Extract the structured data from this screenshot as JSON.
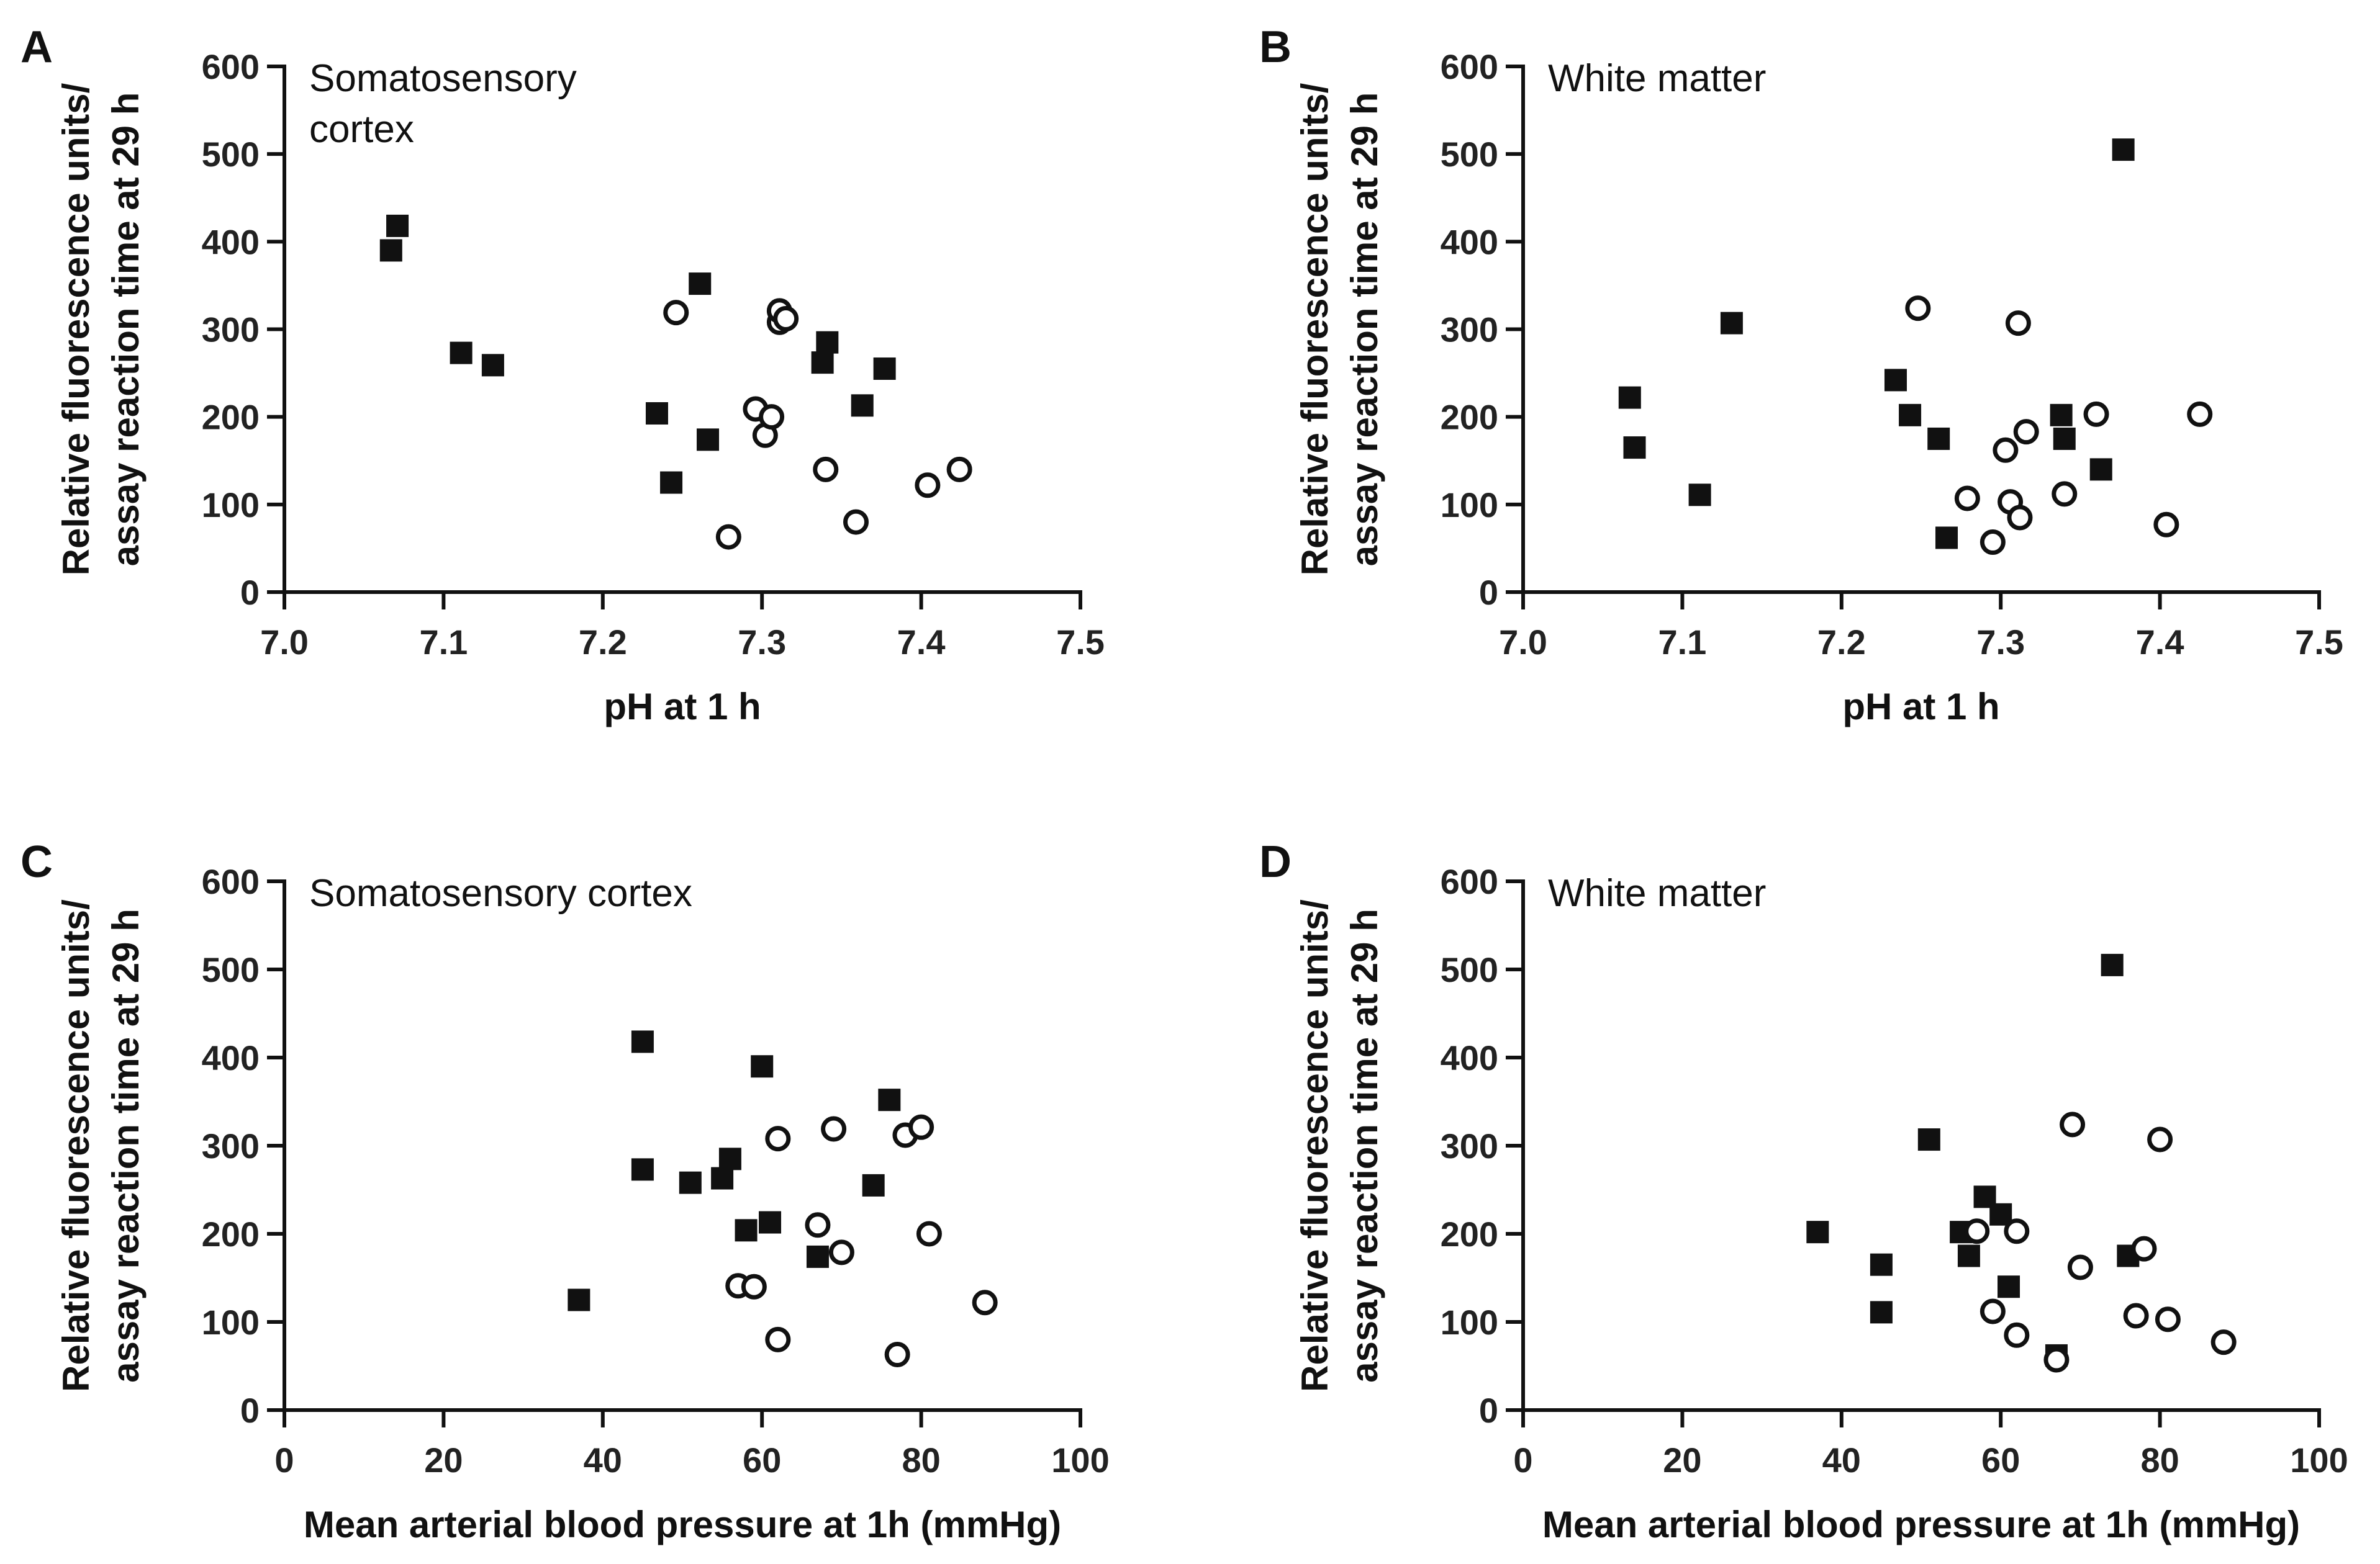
{
  "chart_data": [
    {
      "type": "scatter",
      "panel": "A",
      "title": "Somatosensory\ncortex",
      "xlabel": "pH at 1 h",
      "ylabel": [
        "Relative fluorescence units/",
        "assay reaction time at 29 h"
      ],
      "xlim": [
        7.0,
        7.5
      ],
      "ylim": [
        0,
        600
      ],
      "xticks": [
        7.0,
        7.1,
        7.2,
        7.3,
        7.4,
        7.5
      ],
      "xtick_labels": [
        "7.0",
        "7.1",
        "7.2",
        "7.3",
        "7.4",
        "7.5"
      ],
      "yticks": [
        0,
        100,
        200,
        300,
        400,
        500,
        600
      ],
      "ytick_labels": [
        "0",
        "100",
        "200",
        "300",
        "400",
        "500",
        "600"
      ],
      "series": [
        {
          "name": "filled squares",
          "marker": "square",
          "points": [
            [
              7.067,
              390
            ],
            [
              7.071,
              418
            ],
            [
              7.111,
              273
            ],
            [
              7.131,
              259
            ],
            [
              7.234,
              204
            ],
            [
              7.243,
              125
            ],
            [
              7.261,
              352
            ],
            [
              7.266,
              174
            ],
            [
              7.338,
              262
            ],
            [
              7.341,
              285
            ],
            [
              7.363,
              213
            ],
            [
              7.377,
              255
            ]
          ]
        },
        {
          "name": "open circles",
          "marker": "circle",
          "points": [
            [
              7.246,
              319
            ],
            [
              7.279,
              63
            ],
            [
              7.296,
              209
            ],
            [
              7.302,
              179
            ],
            [
              7.306,
              200
            ],
            [
              7.311,
              308
            ],
            [
              7.311,
              321
            ],
            [
              7.315,
              312
            ],
            [
              7.34,
              140
            ],
            [
              7.359,
              80
            ],
            [
              7.404,
              122
            ],
            [
              7.424,
              140
            ]
          ]
        }
      ]
    },
    {
      "type": "scatter",
      "panel": "B",
      "title": "White matter",
      "xlabel": "pH at 1 h",
      "ylabel": [
        "Relative fluorescence units/",
        "assay reaction time at 29 h"
      ],
      "xlim": [
        7.0,
        7.5
      ],
      "ylim": [
        0,
        600
      ],
      "xticks": [
        7.0,
        7.1,
        7.2,
        7.3,
        7.4,
        7.5
      ],
      "xtick_labels": [
        "7.0",
        "7.1",
        "7.2",
        "7.3",
        "7.4",
        "7.5"
      ],
      "yticks": [
        0,
        100,
        200,
        300,
        400,
        500,
        600
      ],
      "ytick_labels": [
        "0",
        "100",
        "200",
        "300",
        "400",
        "500",
        "600"
      ],
      "series": [
        {
          "name": "filled squares",
          "marker": "square",
          "points": [
            [
              7.067,
              222
            ],
            [
              7.07,
              165
            ],
            [
              7.111,
              111
            ],
            [
              7.131,
              307
            ],
            [
              7.234,
              242
            ],
            [
              7.243,
              202
            ],
            [
              7.261,
              175
            ],
            [
              7.266,
              62
            ],
            [
              7.338,
              202
            ],
            [
              7.34,
              175
            ],
            [
              7.363,
              140
            ],
            [
              7.377,
              505
            ]
          ]
        },
        {
          "name": "open circles",
          "marker": "circle",
          "points": [
            [
              7.248,
              324
            ],
            [
              7.279,
              107
            ],
            [
              7.295,
              57
            ],
            [
              7.303,
              162
            ],
            [
              7.306,
              103
            ],
            [
              7.311,
              307
            ],
            [
              7.312,
              85
            ],
            [
              7.316,
              183
            ],
            [
              7.34,
              112
            ],
            [
              7.36,
              203
            ],
            [
              7.404,
              77
            ],
            [
              7.425,
              203
            ]
          ]
        }
      ]
    },
    {
      "type": "scatter",
      "panel": "C",
      "title": "Somatosensory cortex",
      "xlabel": "Mean arterial blood pressure at 1h (mmHg)",
      "ylabel": [
        "Relative fluorescence units/",
        "assay reaction time at 29 h"
      ],
      "xlim": [
        0,
        100
      ],
      "ylim": [
        0,
        600
      ],
      "xticks": [
        0,
        20,
        40,
        60,
        80,
        100
      ],
      "xtick_labels": [
        "0",
        "20",
        "40",
        "60",
        "80",
        "100"
      ],
      "yticks": [
        0,
        100,
        200,
        300,
        400,
        500,
        600
      ],
      "ytick_labels": [
        "0",
        "100",
        "200",
        "300",
        "400",
        "500",
        "600"
      ],
      "series": [
        {
          "name": "filled squares",
          "marker": "square",
          "points": [
            [
              37,
              125
            ],
            [
              45,
              418
            ],
            [
              45,
              273
            ],
            [
              51,
              258
            ],
            [
              55,
              263
            ],
            [
              56,
              285
            ],
            [
              58,
              204
            ],
            [
              60,
              390
            ],
            [
              61,
              213
            ],
            [
              67,
              174
            ],
            [
              74,
              255
            ],
            [
              76,
              352
            ]
          ]
        },
        {
          "name": "open circles",
          "marker": "circle",
          "points": [
            [
              57,
              141
            ],
            [
              59,
              140
            ],
            [
              62,
              308
            ],
            [
              62,
              80
            ],
            [
              67,
              210
            ],
            [
              69,
              319
            ],
            [
              70,
              179
            ],
            [
              77,
              63
            ],
            [
              78,
              312
            ],
            [
              80,
              321
            ],
            [
              81,
              200
            ],
            [
              88,
              122
            ]
          ]
        }
      ]
    },
    {
      "type": "scatter",
      "panel": "D",
      "title": "White matter",
      "xlabel": "Mean arterial blood pressure at 1h (mmHg)",
      "ylabel": [
        "Relative fluorescence units/",
        "assay reaction time at 29 h"
      ],
      "xlim": [
        0,
        100
      ],
      "ylim": [
        0,
        600
      ],
      "xticks": [
        0,
        20,
        40,
        60,
        80,
        100
      ],
      "xtick_labels": [
        "0",
        "20",
        "40",
        "60",
        "80",
        "100"
      ],
      "yticks": [
        0,
        100,
        200,
        300,
        400,
        500,
        600
      ],
      "ytick_labels": [
        "0",
        "100",
        "200",
        "300",
        "400",
        "500",
        "600"
      ],
      "series": [
        {
          "name": "filled squares",
          "marker": "square",
          "points": [
            [
              37,
              202
            ],
            [
              45,
              165
            ],
            [
              45,
              111
            ],
            [
              51,
              307
            ],
            [
              55,
              202
            ],
            [
              56,
              175
            ],
            [
              58,
              242
            ],
            [
              60,
              222
            ],
            [
              61,
              140
            ],
            [
              67,
              62
            ],
            [
              74,
              505
            ],
            [
              76,
              175
            ]
          ]
        },
        {
          "name": "open circles",
          "marker": "circle",
          "points": [
            [
              57,
              203
            ],
            [
              59,
              112
            ],
            [
              62,
              203
            ],
            [
              62,
              85
            ],
            [
              67,
              57
            ],
            [
              69,
              324
            ],
            [
              70,
              162
            ],
            [
              77,
              107
            ],
            [
              78,
              183
            ],
            [
              80,
              307
            ],
            [
              81,
              103
            ],
            [
              88,
              77
            ]
          ]
        }
      ]
    }
  ]
}
